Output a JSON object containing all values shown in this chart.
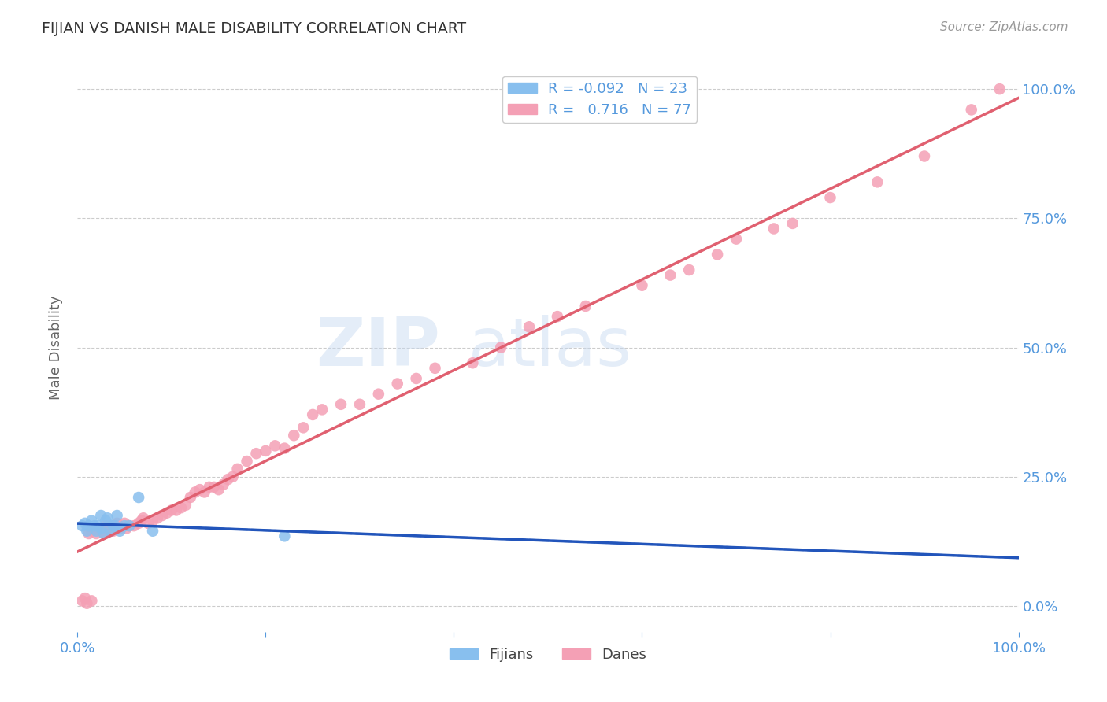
{
  "title": "FIJIAN VS DANISH MALE DISABILITY CORRELATION CHART",
  "source": "Source: ZipAtlas.com",
  "ylabel": "Male Disability",
  "xlim": [
    0.0,
    1.0
  ],
  "ylim": [
    -0.05,
    1.05
  ],
  "x_ticks": [
    0.0,
    0.2,
    0.4,
    0.6,
    0.8,
    1.0
  ],
  "x_tick_labels": [
    "0.0%",
    "",
    "",
    "",
    "",
    "100.0%"
  ],
  "y_ticks": [
    0.0,
    0.25,
    0.5,
    0.75,
    1.0
  ],
  "y_tick_labels": [
    "0.0%",
    "25.0%",
    "50.0%",
    "75.0%",
    "100.0%"
  ],
  "fijian_color": "#88BFEE",
  "dane_color": "#F4A0B5",
  "fijian_line_color": "#2255BB",
  "dane_line_color": "#E06070",
  "legend_R_fijian": "-0.092",
  "legend_N_fijian": "23",
  "legend_R_dane": "0.716",
  "legend_N_dane": "77",
  "fijian_x": [
    0.005,
    0.008,
    0.01,
    0.012,
    0.015,
    0.018,
    0.02,
    0.022,
    0.025,
    0.025,
    0.028,
    0.03,
    0.032,
    0.035,
    0.038,
    0.04,
    0.042,
    0.045,
    0.05,
    0.055,
    0.065,
    0.08,
    0.22
  ],
  "fijian_y": [
    0.155,
    0.16,
    0.145,
    0.155,
    0.165,
    0.155,
    0.145,
    0.155,
    0.15,
    0.175,
    0.14,
    0.165,
    0.17,
    0.145,
    0.155,
    0.155,
    0.175,
    0.145,
    0.155,
    0.155,
    0.21,
    0.145,
    0.135
  ],
  "dane_x": [
    0.005,
    0.008,
    0.01,
    0.012,
    0.015,
    0.015,
    0.018,
    0.02,
    0.022,
    0.025,
    0.028,
    0.03,
    0.032,
    0.035,
    0.038,
    0.04,
    0.042,
    0.045,
    0.05,
    0.052,
    0.055,
    0.06,
    0.065,
    0.068,
    0.07,
    0.075,
    0.08,
    0.085,
    0.09,
    0.095,
    0.1,
    0.105,
    0.11,
    0.115,
    0.12,
    0.125,
    0.13,
    0.135,
    0.14,
    0.145,
    0.15,
    0.155,
    0.16,
    0.165,
    0.17,
    0.18,
    0.19,
    0.2,
    0.21,
    0.22,
    0.23,
    0.24,
    0.25,
    0.26,
    0.28,
    0.3,
    0.32,
    0.34,
    0.36,
    0.38,
    0.42,
    0.45,
    0.48,
    0.51,
    0.54,
    0.6,
    0.63,
    0.65,
    0.68,
    0.7,
    0.74,
    0.76,
    0.8,
    0.85,
    0.9,
    0.95,
    0.98
  ],
  "dane_y": [
    0.01,
    0.015,
    0.005,
    0.14,
    0.145,
    0.01,
    0.15,
    0.14,
    0.15,
    0.145,
    0.14,
    0.155,
    0.145,
    0.155,
    0.145,
    0.15,
    0.16,
    0.15,
    0.16,
    0.15,
    0.155,
    0.155,
    0.16,
    0.165,
    0.17,
    0.16,
    0.165,
    0.17,
    0.175,
    0.18,
    0.185,
    0.185,
    0.19,
    0.195,
    0.21,
    0.22,
    0.225,
    0.22,
    0.23,
    0.23,
    0.225,
    0.235,
    0.245,
    0.25,
    0.265,
    0.28,
    0.295,
    0.3,
    0.31,
    0.305,
    0.33,
    0.345,
    0.37,
    0.38,
    0.39,
    0.39,
    0.41,
    0.43,
    0.44,
    0.46,
    0.47,
    0.5,
    0.54,
    0.56,
    0.58,
    0.62,
    0.64,
    0.65,
    0.68,
    0.71,
    0.73,
    0.74,
    0.79,
    0.82,
    0.87,
    0.96,
    1.0
  ],
  "background_color": "#FFFFFF",
  "grid_color": "#CCCCCC",
  "watermark_zip": "ZIP",
  "watermark_atlas": "atlas",
  "title_color": "#333333",
  "axis_label_color": "#5599DD",
  "ylabel_color": "#666666"
}
